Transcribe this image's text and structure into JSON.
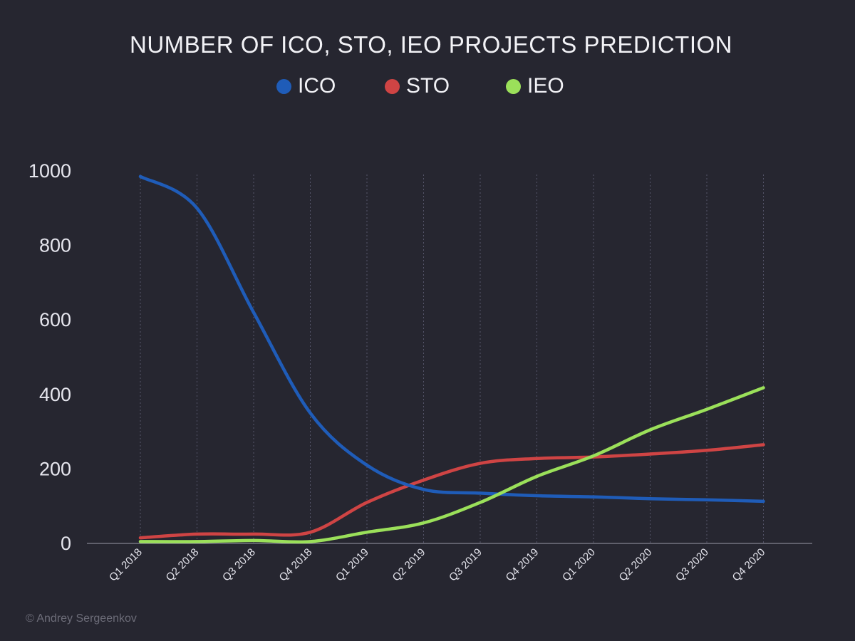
{
  "chart_data": {
    "type": "line",
    "title": "NUMBER OF ICO, STO, IEO  PROJECTS PREDICTION",
    "categories": [
      "Q1 2018",
      "Q2 2018",
      "Q3 2018",
      "Q4 2018",
      "Q1 2019",
      "Q2 2019",
      "Q3 2019",
      "Q4 2019",
      "Q1 2020",
      "Q2 2020",
      "Q3 2020",
      "Q4 2020"
    ],
    "yticks": [
      "0",
      "200",
      "400",
      "600",
      "800",
      "1000"
    ],
    "ylim": [
      0,
      1000
    ],
    "grid": "vertical dotted lines at each category",
    "legend_position": "top-center",
    "series": [
      {
        "name": "ICO",
        "color": "#1f5cb8",
        "values": [
          985,
          900,
          620,
          350,
          210,
          145,
          135,
          128,
          125,
          120,
          117,
          113
        ]
      },
      {
        "name": "STO",
        "color": "#cf4444",
        "values": [
          15,
          25,
          25,
          30,
          110,
          170,
          215,
          228,
          232,
          240,
          250,
          265
        ]
      },
      {
        "name": "IEO",
        "color": "#9be05a",
        "values": [
          5,
          5,
          8,
          5,
          30,
          55,
          110,
          180,
          235,
          305,
          360,
          418
        ]
      }
    ]
  },
  "footer": "© Andrey Sergeenkov"
}
